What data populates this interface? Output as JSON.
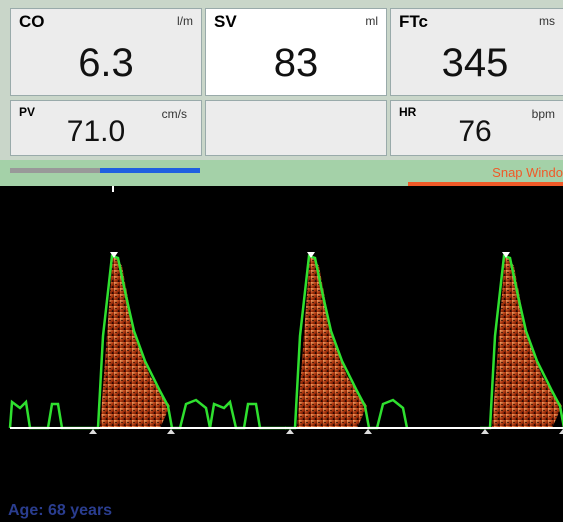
{
  "tiles": [
    {
      "label": "CO",
      "unit": "l/m",
      "value": "6.3"
    },
    {
      "label": "SV",
      "unit": "ml",
      "value": "83"
    },
    {
      "label": "FTc",
      "unit": "ms",
      "value": "345"
    },
    {
      "label": "PV",
      "unit": "cm/s",
      "value": "71.0"
    },
    {
      "label": "HR",
      "unit": "bpm",
      "value": "76"
    }
  ],
  "snap_label": "Snap Windo",
  "age_label": "Age: 68 years"
}
